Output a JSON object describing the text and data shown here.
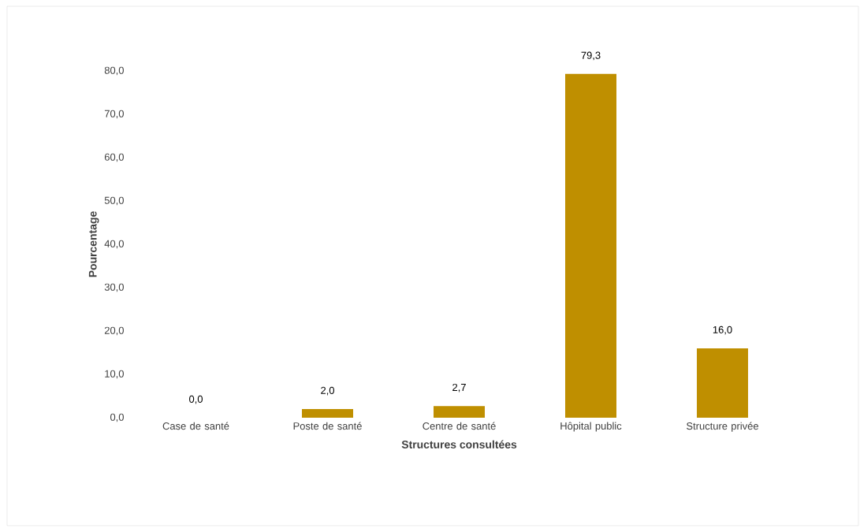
{
  "chart_data": {
    "type": "bar",
    "xlabel": "Structures consultées",
    "ylabel": "Pourcentage",
    "categories": [
      "Case de santé",
      "Poste de santé",
      "Centre de santé",
      "Hôpital public",
      "Structure privée"
    ],
    "values": [
      0.0,
      2.0,
      2.7,
      79.3,
      16.0
    ],
    "value_labels": [
      "0,0",
      "2,0",
      "2,7",
      "79,3",
      "16,0"
    ],
    "color": "#bf8f00",
    "ylim": [
      0,
      80
    ],
    "yticks": [
      {
        "value": 0,
        "label": "0,0"
      },
      {
        "value": 10,
        "label": "10,0"
      },
      {
        "value": 20,
        "label": "20,0"
      },
      {
        "value": 30,
        "label": "30,0"
      },
      {
        "value": 40,
        "label": "40,0"
      },
      {
        "value": 50,
        "label": "50,0"
      },
      {
        "value": 60,
        "label": "60,0"
      },
      {
        "value": 70,
        "label": "70,0"
      },
      {
        "value": 80,
        "label": "80,0"
      }
    ],
    "grid": false
  }
}
